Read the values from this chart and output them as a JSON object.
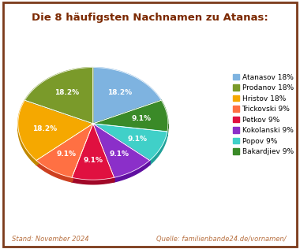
{
  "title": "Die 8 häufigsten Nachnamen zu Atanas:",
  "labels": [
    "Atanasov 18%",
    "Prodanov 18%",
    "Hristov 18%",
    "Trickovski 9%",
    "Petkov 9%",
    "Kokolanski 9%",
    "Popov 9%",
    "Bakardjiev 9%"
  ],
  "slice_labels": [
    "18.2%",
    "18.2%",
    "18.2%",
    "9.1%",
    "9.1%",
    "9.1%",
    "9.1%",
    "9.1%"
  ],
  "values": [
    18.2,
    18.2,
    18.2,
    9.1,
    9.1,
    9.1,
    9.1,
    9.1
  ],
  "colors": [
    "#7eb3e0",
    "#7a9a2a",
    "#f5a800",
    "#ff7043",
    "#e01040",
    "#8b2fc9",
    "#40d0c8",
    "#3a8a28"
  ],
  "shadow_colors": [
    "#5a8fbf",
    "#587018",
    "#c08800",
    "#cc4020",
    "#a00828",
    "#600fa0",
    "#20a098",
    "#286010"
  ],
  "title_color": "#7b2800",
  "footer_left": "Stand: November 2024",
  "footer_right": "Quelle: familienbande24.de/vornamen/",
  "footer_color": "#b87040",
  "background_color": "#ffffff",
  "border_color": "#7b3a1a",
  "startangle": 90,
  "order": [
    0,
    7,
    6,
    5,
    4,
    3,
    2,
    1
  ]
}
